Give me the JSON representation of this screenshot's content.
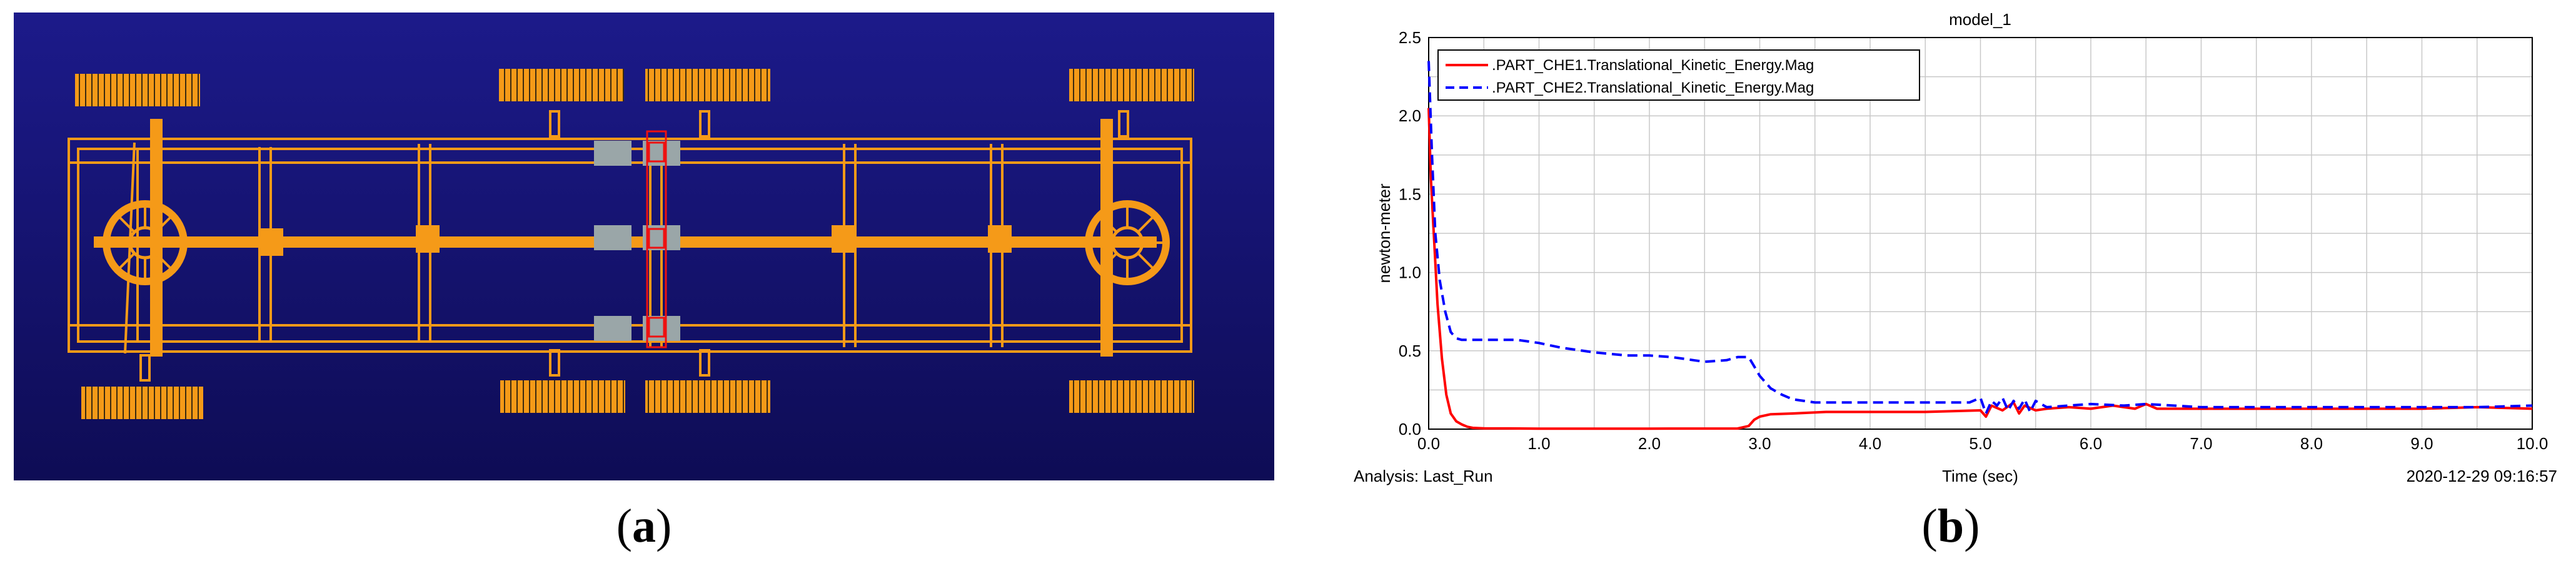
{
  "colors": {
    "viewport_bg_top": "#1c1a8a",
    "viewport_bg_bottom": "#0e0c55",
    "frame": "#f59a18",
    "part_gray": "#9aa6a8",
    "highlight_red": "#ee1111",
    "series1": "#ff0000",
    "series2": "#0000ff",
    "grid": "#c8c8c8"
  },
  "panels": {
    "a": {
      "caption_open": "(",
      "caption_letter": "a",
      "caption_close": ")"
    },
    "b": {
      "caption_open": "(",
      "caption_letter": "b",
      "caption_close": ")"
    }
  },
  "chart_data": {
    "type": "line",
    "title": "model_1",
    "xlabel": "Time (sec)",
    "ylabel": "newton-meter",
    "xlim": [
      0,
      10
    ],
    "ylim": [
      0,
      2.5
    ],
    "x_ticks": [
      "0.0",
      "1.0",
      "2.0",
      "3.0",
      "4.0",
      "5.0",
      "6.0",
      "7.0",
      "8.0",
      "9.0",
      "10.0"
    ],
    "y_ticks": [
      "0.0",
      "0.5",
      "1.0",
      "1.5",
      "2.0",
      "2.5"
    ],
    "x_minor_step": 0.5,
    "y_minor_step": 0.25,
    "grid": true,
    "legend_position": "top-left",
    "footer_left": "Analysis:  Last_Run",
    "footer_right": "2020-12-29 09:16:57",
    "series": [
      {
        "name": ".PART_CHE1.Translational_Kinetic_Energy.Mag",
        "color": "#ff0000",
        "style": "solid",
        "x": [
          0,
          0.02,
          0.05,
          0.08,
          0.12,
          0.16,
          0.2,
          0.25,
          0.3,
          0.35,
          0.4,
          0.5,
          1.0,
          2.0,
          2.8,
          2.9,
          2.95,
          3.0,
          3.1,
          3.3,
          3.6,
          4.0,
          4.5,
          5.0,
          5.05,
          5.1,
          5.2,
          5.3,
          5.35,
          5.4,
          5.5,
          5.6,
          5.8,
          6.0,
          6.2,
          6.4,
          6.5,
          6.6,
          7.0,
          7.5,
          8.0,
          8.5,
          9.0,
          9.5,
          10.0
        ],
        "y": [
          2.05,
          1.6,
          1.2,
          0.8,
          0.45,
          0.22,
          0.1,
          0.05,
          0.03,
          0.015,
          0.008,
          0.005,
          0.003,
          0.003,
          0.004,
          0.02,
          0.06,
          0.08,
          0.095,
          0.1,
          0.11,
          0.11,
          0.11,
          0.12,
          0.08,
          0.15,
          0.12,
          0.17,
          0.1,
          0.15,
          0.12,
          0.13,
          0.14,
          0.13,
          0.15,
          0.13,
          0.16,
          0.13,
          0.13,
          0.13,
          0.13,
          0.13,
          0.13,
          0.14,
          0.13
        ]
      },
      {
        "name": ".PART_CHE2.Translational_Kinetic_Energy.Mag",
        "color": "#0000ff",
        "style": "dashed",
        "x": [
          0,
          0.03,
          0.06,
          0.1,
          0.15,
          0.2,
          0.25,
          0.3,
          0.5,
          0.8,
          1.0,
          1.2,
          1.5,
          1.8,
          2.0,
          2.2,
          2.5,
          2.7,
          2.8,
          2.9,
          2.95,
          3.0,
          3.1,
          3.2,
          3.3,
          3.5,
          4.0,
          4.5,
          4.9,
          5.0,
          5.05,
          5.1,
          5.15,
          5.2,
          5.25,
          5.3,
          5.35,
          5.4,
          5.45,
          5.5,
          5.6,
          6.0,
          6.3,
          6.5,
          7.0,
          8.0,
          9.0,
          9.5,
          10.0
        ],
        "y": [
          2.35,
          1.75,
          1.25,
          0.95,
          0.75,
          0.62,
          0.58,
          0.57,
          0.57,
          0.57,
          0.55,
          0.52,
          0.49,
          0.47,
          0.47,
          0.46,
          0.43,
          0.44,
          0.46,
          0.46,
          0.4,
          0.34,
          0.26,
          0.22,
          0.19,
          0.17,
          0.17,
          0.17,
          0.17,
          0.2,
          0.1,
          0.18,
          0.15,
          0.2,
          0.12,
          0.18,
          0.13,
          0.19,
          0.11,
          0.18,
          0.14,
          0.16,
          0.15,
          0.16,
          0.14,
          0.14,
          0.14,
          0.14,
          0.15
        ]
      }
    ]
  }
}
